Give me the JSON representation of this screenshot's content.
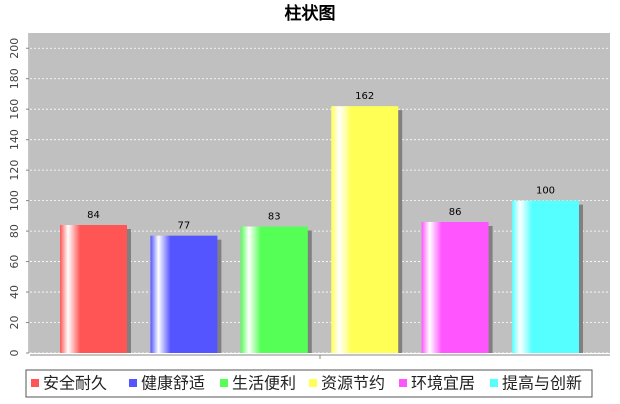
{
  "chart_data": {
    "type": "bar",
    "title": "柱状图",
    "categories": [
      "安全耐久",
      "健康舒适",
      "生活便利",
      "资源节约",
      "环境宜居",
      "提高与创新"
    ],
    "values": [
      84,
      77,
      83,
      162,
      86,
      100
    ],
    "colors": [
      "#ff5555",
      "#5555ff",
      "#55ff55",
      "#ffff55",
      "#ff55ff",
      "#55ffff"
    ],
    "ylim": [
      0,
      210
    ],
    "yticks": [
      0,
      20,
      40,
      60,
      80,
      100,
      120,
      140,
      160,
      180,
      200
    ],
    "grid": true
  }
}
